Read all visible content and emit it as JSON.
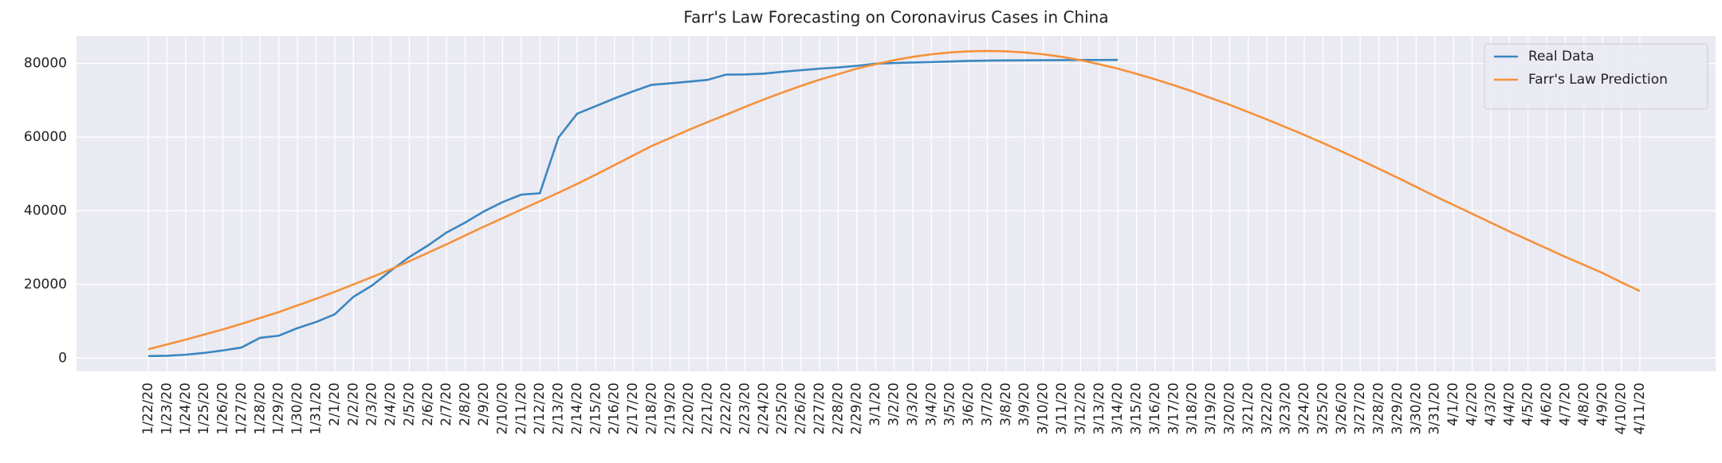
{
  "chart_data": {
    "type": "line",
    "title": "Farr's Law Forecasting on Coronavirus Cases in China",
    "categories": [
      "1/22/20",
      "1/23/20",
      "1/24/20",
      "1/25/20",
      "1/26/20",
      "1/27/20",
      "1/28/20",
      "1/29/20",
      "1/30/20",
      "1/31/20",
      "2/1/20",
      "2/2/20",
      "2/3/20",
      "2/4/20",
      "2/5/20",
      "2/6/20",
      "2/7/20",
      "2/8/20",
      "2/9/20",
      "2/10/20",
      "2/11/20",
      "2/12/20",
      "2/13/20",
      "2/14/20",
      "2/15/20",
      "2/16/20",
      "2/17/20",
      "2/18/20",
      "2/19/20",
      "2/20/20",
      "2/21/20",
      "2/22/20",
      "2/23/20",
      "2/24/20",
      "2/25/20",
      "2/26/20",
      "2/27/20",
      "2/28/20",
      "2/29/20",
      "3/1/20",
      "3/2/20",
      "3/3/20",
      "3/4/20",
      "3/5/20",
      "3/6/20",
      "3/7/20",
      "3/8/20",
      "3/9/20",
      "3/10/20",
      "3/11/20",
      "3/12/20",
      "3/13/20",
      "3/14/20",
      "3/15/20",
      "3/16/20",
      "3/17/20",
      "3/18/20",
      "3/19/20",
      "3/20/20",
      "3/21/20",
      "3/22/20",
      "3/23/20",
      "3/24/20",
      "3/25/20",
      "3/26/20",
      "3/27/20",
      "3/28/20",
      "3/29/20",
      "3/30/20",
      "3/31/20",
      "4/1/20",
      "4/2/20",
      "4/3/20",
      "4/4/20",
      "4/5/20",
      "4/6/20",
      "4/7/20",
      "4/8/20",
      "4/9/20",
      "4/10/20",
      "4/11/20"
    ],
    "series": [
      {
        "name": "Real Data",
        "color": "#3a86c0",
        "values": [
          548,
          643,
          920,
          1406,
          2075,
          2877,
          5509,
          6087,
          8141,
          9802,
          11891,
          16630,
          19716,
          23707,
          27440,
          30587,
          34110,
          36814,
          39829,
          42354,
          44386,
          44759,
          59895,
          66358,
          68413,
          70513,
          72434,
          74211,
          74619,
          75077,
          75550,
          77001,
          77022,
          77241,
          77754,
          78166,
          78600,
          78928,
          79356,
          79932,
          80136,
          80261,
          80386,
          80537,
          80690,
          80770,
          80823,
          80860,
          80887,
          80921,
          80932,
          80945,
          80977,
          null,
          null,
          null,
          null,
          null,
          null,
          null,
          null,
          null,
          null,
          null,
          null,
          null,
          null,
          null,
          null,
          null,
          null,
          null,
          null,
          null,
          null,
          null,
          null,
          null,
          null,
          null,
          null
        ]
      },
      {
        "name": "Farr's Law Prediction",
        "color": "#f5913a",
        "values": [
          2400,
          3700,
          5000,
          6400,
          7800,
          9300,
          10900,
          12500,
          14300,
          16100,
          18000,
          20000,
          22000,
          24100,
          26300,
          28600,
          30900,
          33300,
          35700,
          38000,
          40300,
          42600,
          44900,
          47300,
          49800,
          52400,
          55000,
          57600,
          59800,
          62000,
          64100,
          66100,
          68200,
          70200,
          72100,
          73900,
          75600,
          77100,
          78600,
          79800,
          80900,
          81800,
          82500,
          83000,
          83300,
          83400,
          83300,
          83000,
          82500,
          81800,
          80900,
          79800,
          78600,
          77200,
          75700,
          74100,
          72400,
          70600,
          68800,
          66800,
          64800,
          62700,
          60600,
          58400,
          56100,
          53800,
          51400,
          49000,
          46500,
          44000,
          41600,
          39200,
          36800,
          34400,
          32100,
          29800,
          27500,
          25300,
          23100,
          20600,
          18200
        ]
      }
    ],
    "ylim": [
      -3600,
      87500
    ],
    "yticks": [
      0,
      20000,
      40000,
      60000,
      80000
    ],
    "grid": true,
    "legend": "upper right"
  }
}
